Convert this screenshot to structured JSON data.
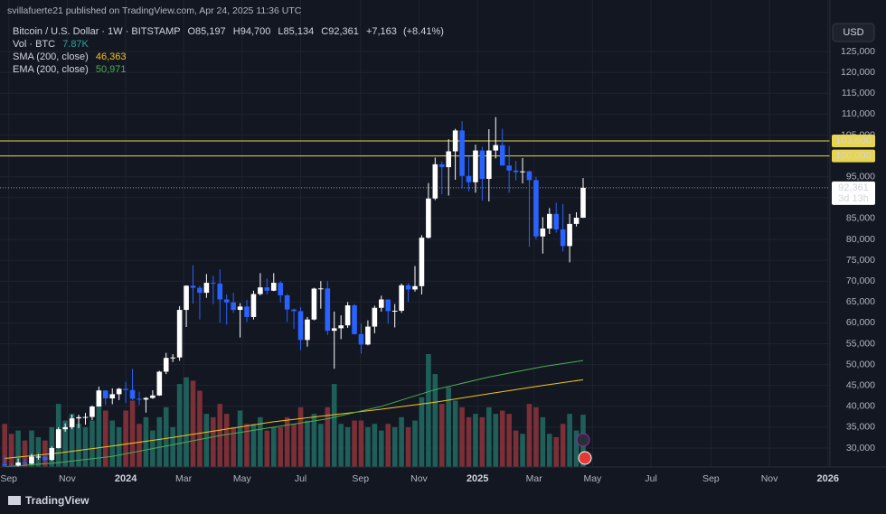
{
  "chart_data": {
    "type": "candlestick",
    "published": "svillafuerte21 published on TradingView.com, Apr 24, 2025 11:36 UTC",
    "legend": {
      "symbol": "Bitcoin / U.S. Dollar · 1W · BITSTAMP",
      "ohlc": [
        {
          "label": "O",
          "value": 85197,
          "value_label": "85,197"
        },
        {
          "label": "H",
          "value": 94700,
          "value_label": "94,700"
        },
        {
          "label": "L",
          "value": 85134,
          "value_label": "85,134"
        },
        {
          "label": "C",
          "value": 92361,
          "value_label": "92,361"
        }
      ],
      "change": {
        "value": 7163,
        "label": "+7,163"
      },
      "change_pct": {
        "value": 8.41,
        "label": "(+8.41%)"
      },
      "volume": {
        "label": "Vol · BTC",
        "value": 7870,
        "value_label": "7.87K",
        "color": "#26a69a"
      }
    },
    "currency": "USD",
    "branding": "TradingView",
    "up_color": "#ffffff",
    "down_color": "#2962ff",
    "grid": true,
    "candles": {
      "open": [
        26100,
        25850,
        25830,
        26530,
        26250,
        27950,
        27950,
        27150,
        29990,
        34500,
        35000,
        37100,
        37400,
        37450,
        39950,
        43800,
        41900,
        42900,
        44200,
        43900,
        41800,
        41600,
        42000,
        42600,
        48300,
        51600,
        51700,
        63100,
        68900,
        68400,
        67200,
        69600,
        69400,
        65600,
        64900,
        63100,
        63900,
        61400,
        66900,
        68500,
        67700,
        69600,
        66600,
        63200,
        62800,
        55900,
        60800,
        68200,
        68250,
        58100,
        58700,
        59400,
        64200,
        57300,
        54800,
        59100,
        63600,
        65600,
        62800,
        62900,
        69000,
        68000,
        68800,
        80400,
        89800,
        98000,
        97300,
        101100,
        106100,
        95200,
        93700,
        101300,
        94500,
        101300,
        102600,
        97700,
        96500,
        96100,
        96300,
        94200,
        80700,
        82600,
        86100,
        82400,
        78400,
        83700,
        85197
      ],
      "high": [
        28150,
        26400,
        27480,
        27400,
        28600,
        28600,
        28000,
        30400,
        35000,
        35900,
        38000,
        37980,
        38400,
        40200,
        44700,
        43800,
        44300,
        44400,
        45900,
        49000,
        43500,
        42200,
        43850,
        48500,
        52800,
        52500,
        64000,
        69000,
        73800,
        68900,
        71700,
        71300,
        72800,
        66800,
        67200,
        64700,
        65500,
        67700,
        71900,
        70600,
        71900,
        70000,
        66900,
        63400,
        63800,
        61400,
        68400,
        70000,
        70000,
        62700,
        61800,
        65000,
        64500,
        59800,
        60600,
        64100,
        66500,
        65600,
        64500,
        69400,
        69500,
        73600,
        81000,
        93500,
        99600,
        98700,
        104000,
        106500,
        108300,
        99900,
        102700,
        102200,
        106400,
        109300,
        106500,
        102400,
        98800,
        99500,
        96500,
        95000,
        85300,
        87500,
        88800,
        88500,
        86100,
        86500,
        94700
      ],
      "low": [
        25350,
        24900,
        24900,
        26000,
        26100,
        27200,
        26550,
        26900,
        29900,
        33900,
        34500,
        34800,
        35600,
        36700,
        39950,
        40300,
        40500,
        41500,
        40800,
        41500,
        40300,
        38500,
        41800,
        42500,
        47700,
        50600,
        50900,
        59000,
        64600,
        60800,
        66000,
        64500,
        60000,
        59600,
        62400,
        56500,
        60200,
        60800,
        66600,
        66800,
        67600,
        64900,
        60200,
        58500,
        53500,
        54300,
        60600,
        63400,
        57100,
        49000,
        56100,
        58800,
        57200,
        52600,
        54600,
        57500,
        62700,
        59800,
        58900,
        62400,
        65000,
        67500,
        66800,
        80200,
        89400,
        90800,
        90500,
        94300,
        92200,
        91500,
        91200,
        89300,
        89100,
        99400,
        97800,
        91200,
        94100,
        93400,
        78200,
        80000,
        76600,
        81300,
        81600,
        77100,
        74500,
        83100,
        85134
      ],
      "close": [
        25850,
        25830,
        26530,
        26250,
        27950,
        27950,
        27150,
        29990,
        34500,
        35000,
        37100,
        37400,
        37450,
        39950,
        43800,
        41900,
        42900,
        44200,
        43900,
        41800,
        41600,
        42000,
        42600,
        48300,
        51600,
        51700,
        63100,
        68900,
        68400,
        67200,
        69600,
        69400,
        65600,
        64900,
        63100,
        63900,
        61400,
        66900,
        68500,
        67700,
        69600,
        66600,
        63200,
        62800,
        55900,
        60800,
        68200,
        68250,
        58100,
        58700,
        59400,
        64200,
        57300,
        54800,
        59100,
        63600,
        65600,
        62800,
        62900,
        69000,
        68000,
        68800,
        80400,
        89800,
        98000,
        97300,
        101100,
        106100,
        95200,
        93700,
        101300,
        94500,
        101300,
        102600,
        97700,
        96500,
        96100,
        96300,
        94200,
        80700,
        82600,
        86100,
        82400,
        78400,
        83700,
        85198,
        92361
      ]
    },
    "volume": {
      "up_color": "#1f5f59",
      "down_color": "#7b2f36",
      "values": [
        6500,
        5000,
        5500,
        4000,
        5500,
        4500,
        4000,
        6000,
        9500,
        7000,
        8000,
        6500,
        6000,
        7000,
        10500,
        8500,
        7000,
        6000,
        8500,
        10000,
        6500,
        7500,
        5500,
        7500,
        9000,
        6000,
        12500,
        13500,
        13000,
        11500,
        8000,
        7500,
        9500,
        8000,
        6000,
        8500,
        6500,
        6500,
        7500,
        5500,
        6000,
        6000,
        7500,
        6500,
        9000,
        7000,
        8000,
        6500,
        9000,
        12500,
        6500,
        6000,
        7000,
        7000,
        6000,
        6500,
        5500,
        6500,
        6000,
        7500,
        6000,
        7000,
        10500,
        17000,
        14000,
        9500,
        12000,
        10000,
        9000,
        7500,
        8000,
        7500,
        9000,
        8000,
        8500,
        8000,
        5500,
        5000,
        9500,
        9000,
        7500,
        5000,
        4500,
        6500,
        8000,
        5500,
        7870
      ]
    },
    "series": [
      {
        "name": "SMA (200, close)",
        "color": "#f5c518",
        "value_label": "46,363",
        "x": [
          0,
          8,
          16,
          24,
          32,
          40,
          48,
          56,
          64,
          72,
          80,
          86
        ],
        "values": [
          27500,
          28800,
          30500,
          32300,
          34300,
          36300,
          37800,
          39300,
          41000,
          43000,
          45000,
          46363
        ]
      },
      {
        "name": "EMA (200, close)",
        "color": "#4caf50",
        "value_label": "50,971",
        "x": [
          0,
          8,
          16,
          24,
          32,
          40,
          48,
          56,
          64,
          72,
          80,
          86
        ],
        "values": [
          25500,
          26500,
          28000,
          30500,
          33000,
          35000,
          37000,
          40000,
          44000,
          47000,
          49500,
          50971
        ]
      }
    ],
    "hlines": {
      "color": "#e8d44d",
      "lines": [
        {
          "value": 103600,
          "label": "103,600"
        },
        {
          "value": 100000,
          "label": "100,000"
        }
      ]
    },
    "last_price": {
      "value": 92361,
      "label": "92,361",
      "countdown": "3d 13h"
    },
    "ylim": [
      25450,
      132600
    ],
    "yticks": [
      {
        "value": 30000,
        "label": "30,000"
      },
      {
        "value": 35000,
        "label": "35,000"
      },
      {
        "value": 40000,
        "label": "40,000"
      },
      {
        "value": 45000,
        "label": "45,000"
      },
      {
        "value": 50000,
        "label": "50,000"
      },
      {
        "value": 55000,
        "label": "55,000"
      },
      {
        "value": 60000,
        "label": "60,000"
      },
      {
        "value": 65000,
        "label": "65,000"
      },
      {
        "value": 70000,
        "label": "70,000"
      },
      {
        "value": 75000,
        "label": "75,000"
      },
      {
        "value": 80000,
        "label": "80,000"
      },
      {
        "value": 85000,
        "label": "85,000"
      },
      {
        "value": 90000,
        "label": "90,000"
      },
      {
        "value": 95000,
        "label": "95,000"
      },
      {
        "value": 100000,
        "label": "100,000"
      },
      {
        "value": 105000,
        "label": "105,000"
      },
      {
        "value": 110000,
        "label": "110,000"
      },
      {
        "value": 115000,
        "label": "115,000"
      },
      {
        "value": 120000,
        "label": "120,000"
      },
      {
        "value": 125000,
        "label": "125,000"
      }
    ],
    "xlim": [
      -0.7,
      122.7
    ],
    "xticks": [
      {
        "value": 0.6,
        "label": "Sep"
      },
      {
        "value": 9.3,
        "label": "Nov"
      },
      {
        "value": 18,
        "label": "2024"
      },
      {
        "value": 26.6,
        "label": "Mar"
      },
      {
        "value": 35.3,
        "label": "May"
      },
      {
        "value": 44,
        "label": "Jul"
      },
      {
        "value": 52.9,
        "label": "Sep"
      },
      {
        "value": 61.6,
        "label": "Nov"
      },
      {
        "value": 70.3,
        "label": "2025"
      },
      {
        "value": 78.7,
        "label": "Mar"
      },
      {
        "value": 87.4,
        "label": "May"
      },
      {
        "value": 96.1,
        "label": "Jul"
      },
      {
        "value": 105,
        "label": "Sep"
      },
      {
        "value": 113.7,
        "label": "Nov"
      },
      {
        "value": 122.4,
        "label": "2026"
      }
    ]
  }
}
